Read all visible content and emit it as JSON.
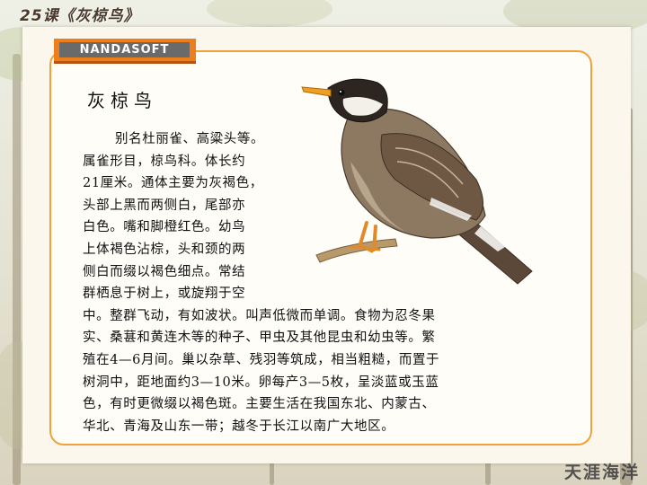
{
  "header": {
    "lesson_title": "25课《灰椋鸟》"
  },
  "logo": {
    "text": "NANDASOFT"
  },
  "article": {
    "heading": "灰椋鸟",
    "lines": [
      "别名杜丽雀、高粱头等。",
      "属雀形目，椋鸟科。体长约",
      "21厘米。通体主要为灰褐色，",
      "头部上黑而两侧白，尾部亦",
      "白色。嘴和脚橙红色。幼鸟",
      "上体褐色沾棕，头和颈的两",
      "侧白而缀以褐色细点。常结",
      "群栖息于树上，或旋翔于空",
      "中。整群飞动，有如波状。叫声低微而单调。食物为忍冬果",
      "实、桑葚和黄连木等的种子、甲虫及其他昆虫和幼虫等。繁",
      "殖在4—6月间。巢以杂草、残羽等筑成，相当粗糙，而置于",
      "树洞中，距地面约3—10米。卵每产3—5枚，呈淡蓝或玉蓝",
      "色，有时更微缀以褐色斑。主要生活在我国东北、内蒙古、",
      "华北、青海及山东一带；越冬于长江以南广大地区。"
    ]
  },
  "footer": {
    "watermark": "天涯海洋"
  },
  "colors": {
    "accent": "#ee7d1b",
    "card_border": "#f0a238",
    "logo_fill": "#6a6a6a"
  },
  "illustration": {
    "icon": "grey-starling-bird-icon"
  }
}
